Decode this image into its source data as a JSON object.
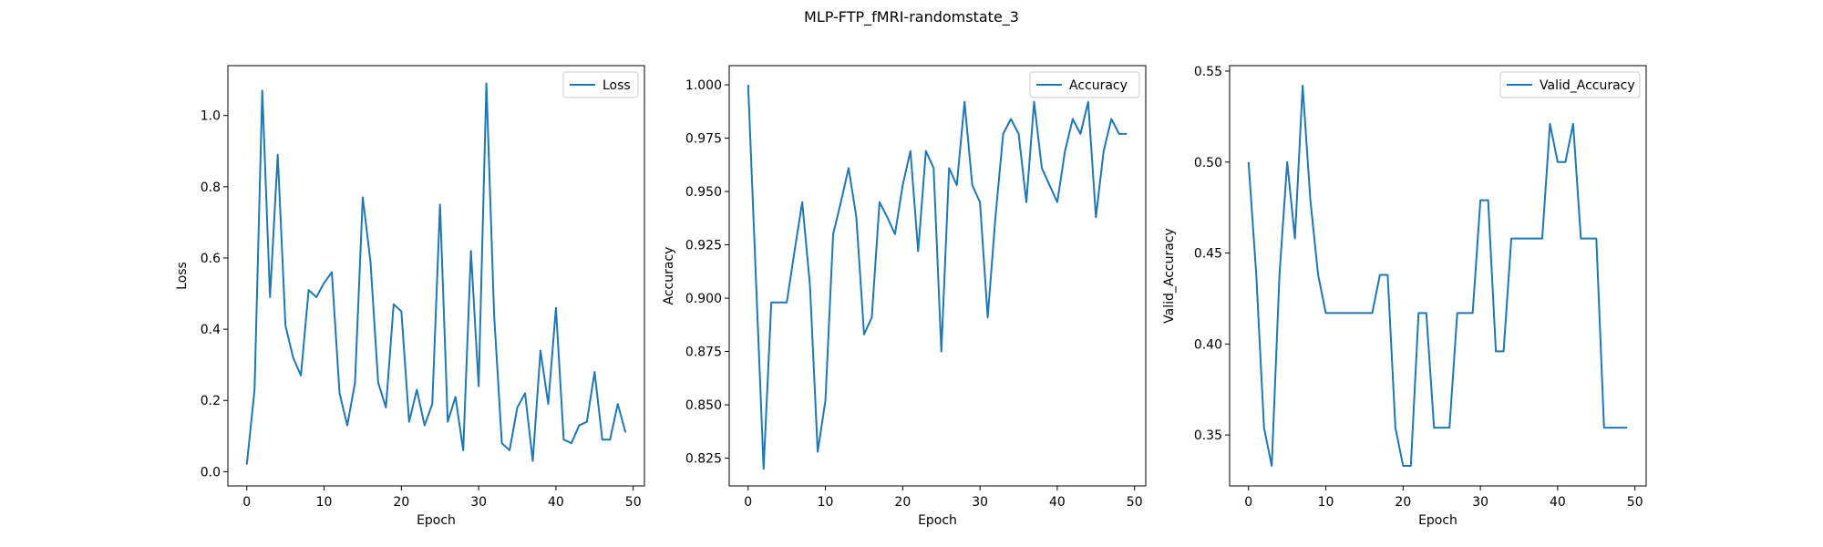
{
  "suptitle": "MLP-FTP_fMRI-randomstate_3",
  "colors": {
    "series": "#1f77b4",
    "axes": "#000000",
    "background": "#ffffff"
  },
  "chart_data": [
    {
      "type": "line",
      "xlabel": "Epoch",
      "ylabel": "Loss",
      "xlim": [
        -2.45,
        51.45
      ],
      "ylim": [
        -0.04,
        1.14
      ],
      "xticks": [
        0,
        10,
        20,
        30,
        40,
        50
      ],
      "xtick_labels": [
        "0",
        "10",
        "20",
        "30",
        "40",
        "50"
      ],
      "yticks": [
        0.0,
        0.2,
        0.4,
        0.6,
        0.8,
        1.0
      ],
      "ytick_labels": [
        "0.0",
        "0.2",
        "0.4",
        "0.6",
        "0.8",
        "1.0"
      ],
      "legend_position": "top-right",
      "grid": false,
      "series": [
        {
          "name": "Loss",
          "x": [
            0,
            1,
            2,
            3,
            4,
            5,
            6,
            7,
            8,
            9,
            10,
            11,
            12,
            13,
            14,
            15,
            16,
            17,
            18,
            19,
            20,
            21,
            22,
            23,
            24,
            25,
            26,
            27,
            28,
            29,
            30,
            31,
            32,
            33,
            34,
            35,
            36,
            37,
            38,
            39,
            40,
            41,
            42,
            43,
            44,
            45,
            46,
            47,
            48,
            49
          ],
          "values": [
            0.02,
            0.23,
            1.07,
            0.49,
            0.89,
            0.41,
            0.32,
            0.27,
            0.51,
            0.49,
            0.53,
            0.56,
            0.22,
            0.13,
            0.25,
            0.77,
            0.59,
            0.25,
            0.18,
            0.47,
            0.45,
            0.14,
            0.23,
            0.13,
            0.19,
            0.75,
            0.14,
            0.21,
            0.06,
            0.62,
            0.24,
            1.09,
            0.44,
            0.08,
            0.06,
            0.18,
            0.22,
            0.03,
            0.34,
            0.19,
            0.46,
            0.09,
            0.08,
            0.13,
            0.14,
            0.28,
            0.09,
            0.09,
            0.19,
            0.11
          ]
        }
      ]
    },
    {
      "type": "line",
      "xlabel": "Epoch",
      "ylabel": "Accuracy",
      "xlim": [
        -2.45,
        51.45
      ],
      "ylim": [
        0.812,
        1.009
      ],
      "xticks": [
        0,
        10,
        20,
        30,
        40,
        50
      ],
      "xtick_labels": [
        "0",
        "10",
        "20",
        "30",
        "40",
        "50"
      ],
      "yticks": [
        0.825,
        0.85,
        0.875,
        0.9,
        0.925,
        0.95,
        0.975,
        1.0
      ],
      "ytick_labels": [
        "0.825",
        "0.850",
        "0.875",
        "0.900",
        "0.925",
        "0.950",
        "0.975",
        "1.000"
      ],
      "legend_position": "top-right",
      "grid": false,
      "series": [
        {
          "name": "Accuracy",
          "x": [
            0,
            1,
            2,
            3,
            4,
            5,
            6,
            7,
            8,
            9,
            10,
            11,
            12,
            13,
            14,
            15,
            16,
            17,
            18,
            19,
            20,
            21,
            22,
            23,
            24,
            25,
            26,
            27,
            28,
            29,
            30,
            31,
            32,
            33,
            34,
            35,
            36,
            37,
            38,
            39,
            40,
            41,
            42,
            43,
            44,
            45,
            46,
            47,
            48,
            49
          ],
          "values": [
            1.0,
            0.91,
            0.82,
            0.898,
            0.898,
            0.898,
            0.922,
            0.945,
            0.906,
            0.828,
            0.852,
            0.93,
            0.945,
            0.961,
            0.938,
            0.883,
            0.891,
            0.945,
            0.938,
            0.93,
            0.953,
            0.969,
            0.922,
            0.969,
            0.961,
            0.875,
            0.961,
            0.953,
            0.992,
            0.953,
            0.945,
            0.891,
            0.938,
            0.977,
            0.984,
            0.977,
            0.945,
            0.992,
            0.961,
            0.953,
            0.945,
            0.969,
            0.984,
            0.977,
            0.992,
            0.938,
            0.969,
            0.984,
            0.977,
            0.977
          ]
        }
      ]
    },
    {
      "type": "line",
      "xlabel": "Epoch",
      "ylabel": "Valid_Accuracy",
      "xlim": [
        -2.45,
        51.45
      ],
      "ylim": [
        0.322,
        0.553
      ],
      "xticks": [
        0,
        10,
        20,
        30,
        40,
        50
      ],
      "xtick_labels": [
        "0",
        "10",
        "20",
        "30",
        "40",
        "50"
      ],
      "yticks": [
        0.35,
        0.4,
        0.45,
        0.5,
        0.55
      ],
      "ytick_labels": [
        "0.35",
        "0.40",
        "0.45",
        "0.50",
        "0.55"
      ],
      "legend_position": "top-right",
      "grid": false,
      "series": [
        {
          "name": "Valid_Accuracy",
          "x": [
            0,
            1,
            2,
            3,
            4,
            5,
            6,
            7,
            8,
            9,
            10,
            11,
            12,
            13,
            14,
            15,
            16,
            17,
            18,
            19,
            20,
            21,
            22,
            23,
            24,
            25,
            26,
            27,
            28,
            29,
            30,
            31,
            32,
            33,
            34,
            35,
            36,
            37,
            38,
            39,
            40,
            41,
            42,
            43,
            44,
            45,
            46,
            47,
            48,
            49
          ],
          "values": [
            0.5,
            0.438,
            0.354,
            0.333,
            0.438,
            0.5,
            0.458,
            0.542,
            0.479,
            0.438,
            0.417,
            0.417,
            0.417,
            0.417,
            0.417,
            0.417,
            0.417,
            0.438,
            0.438,
            0.354,
            0.333,
            0.333,
            0.417,
            0.417,
            0.354,
            0.354,
            0.354,
            0.417,
            0.417,
            0.417,
            0.479,
            0.479,
            0.396,
            0.396,
            0.458,
            0.458,
            0.458,
            0.458,
            0.458,
            0.521,
            0.5,
            0.5,
            0.521,
            0.458,
            0.458,
            0.458,
            0.354,
            0.354,
            0.354,
            0.354
          ]
        }
      ]
    }
  ]
}
